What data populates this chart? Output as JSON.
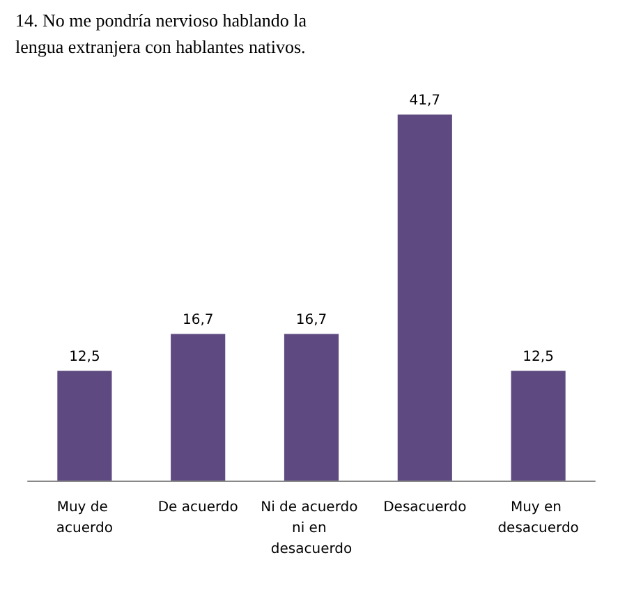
{
  "chart_data": {
    "type": "bar",
    "title": "14. No me pondría nervioso hablando la lengua extranjera con hablantes nativos.",
    "categories": [
      "Muy de acuerdo",
      "De acuerdo",
      "Ni de acuerdo ni en desacuerdo",
      "Desacuerdo",
      "Muy en desacuerdo"
    ],
    "values": [
      12.5,
      16.7,
      16.7,
      41.7,
      12.5
    ],
    "value_labels": [
      "12,5",
      "16,7",
      "16,7",
      "41,7",
      "12,5"
    ],
    "color": "#5e4a80"
  }
}
